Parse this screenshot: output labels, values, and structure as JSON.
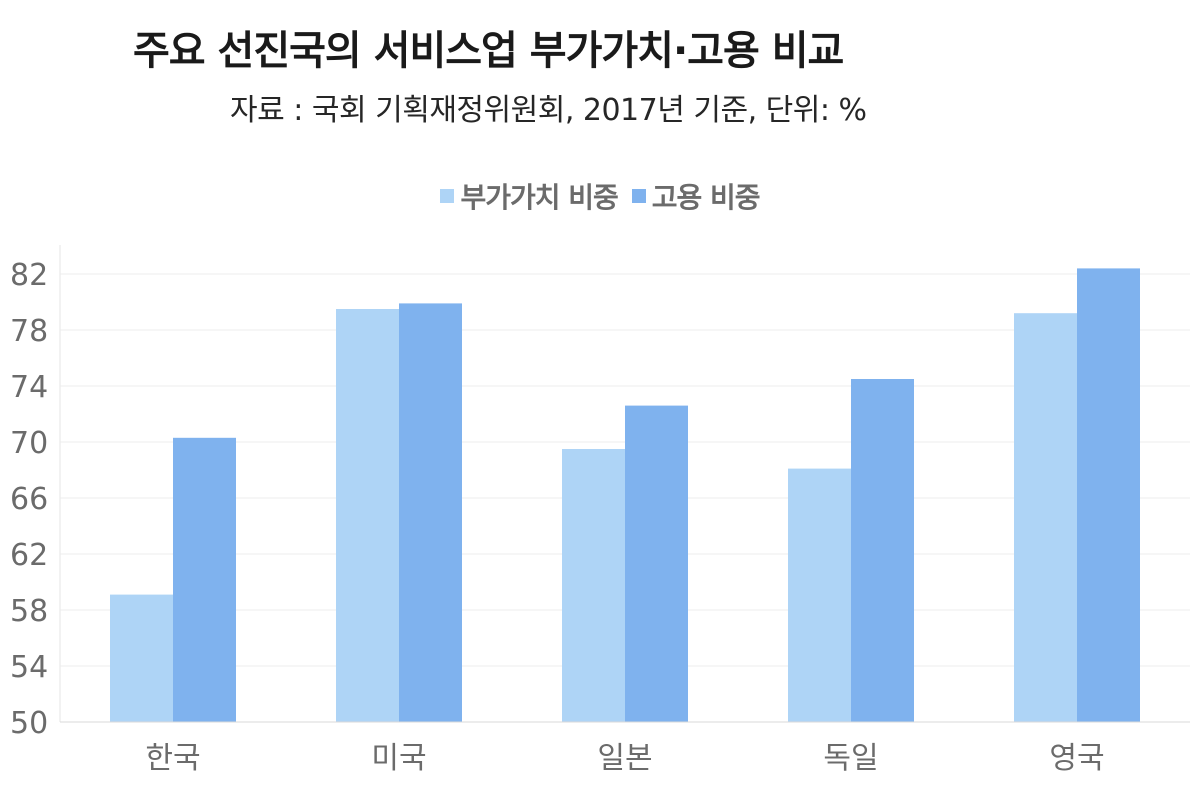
{
  "title": "주요 선진국의 서비스업 부가가치·고용 비교",
  "subtitle": "자료 : 국회 기획재정위원회, 2017년 기준, 단위: %",
  "colors": {
    "value_added": "#aed4f6",
    "employment": "#7fb2ee",
    "grid": "#ececec",
    "axis_text": "#6b6b6b"
  },
  "chart_data": {
    "type": "bar",
    "categories": [
      "한국",
      "미국",
      "일본",
      "독일",
      "영국"
    ],
    "series": [
      {
        "name": "부가가치 비중",
        "values": [
          59.1,
          79.5,
          69.5,
          68.1,
          79.2
        ]
      },
      {
        "name": "고용 비중",
        "values": [
          70.3,
          79.9,
          72.6,
          74.5,
          82.4
        ]
      }
    ],
    "ylim": [
      50,
      84
    ],
    "yticks": [
      50,
      54,
      58,
      62,
      66,
      70,
      74,
      78,
      82
    ],
    "xlabel": "",
    "ylabel": "",
    "grid": true,
    "legend_position": "top-center"
  }
}
